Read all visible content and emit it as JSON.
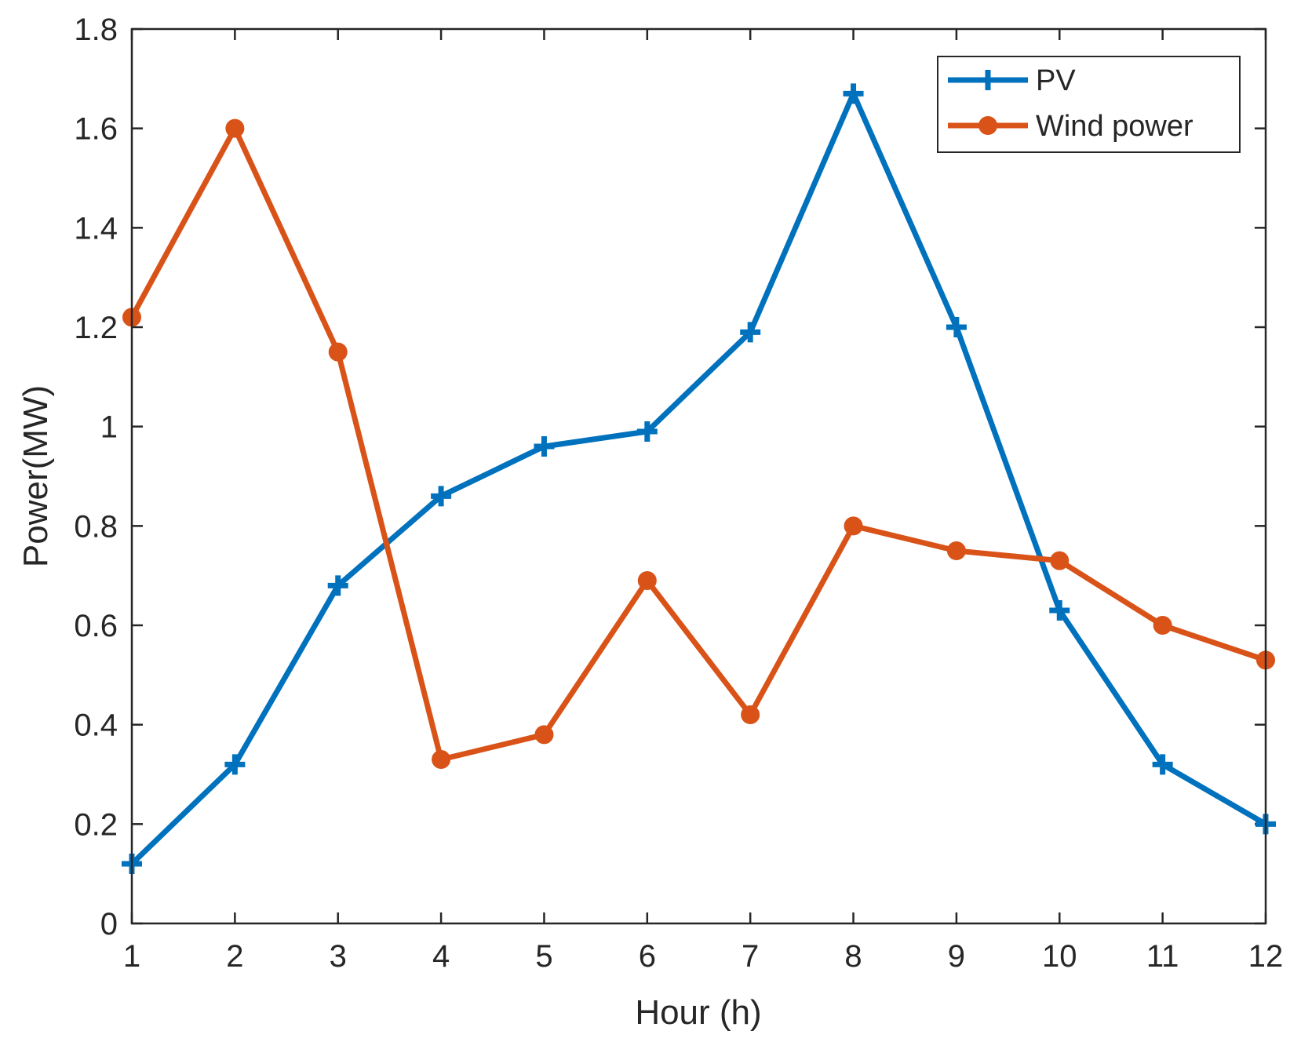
{
  "chart_data": {
    "type": "line",
    "title": "",
    "xlabel": "Hour (h)",
    "ylabel": "Power(MW)",
    "x": [
      1,
      2,
      3,
      4,
      5,
      6,
      7,
      8,
      9,
      10,
      11,
      12
    ],
    "xlim": [
      1,
      12
    ],
    "ylim": [
      0,
      1.8
    ],
    "xticks": [
      "1",
      "2",
      "3",
      "4",
      "5",
      "6",
      "7",
      "8",
      "9",
      "10",
      "11",
      "12"
    ],
    "yticks": [
      "0",
      "0.2",
      "0.4",
      "0.6",
      "0.8",
      "1",
      "1.2",
      "1.4",
      "1.6",
      "1.8"
    ],
    "grid": false,
    "legend_position": "top-right",
    "series": [
      {
        "name": "PV",
        "marker": "plus",
        "color": "#0072BD",
        "values": [
          0.12,
          0.32,
          0.68,
          0.86,
          0.96,
          0.99,
          1.19,
          1.67,
          1.2,
          0.63,
          0.32,
          0.2
        ]
      },
      {
        "name": "Wind power",
        "marker": "circle",
        "color": "#D95319",
        "values": [
          1.22,
          1.6,
          1.15,
          0.33,
          0.38,
          0.69,
          0.42,
          0.8,
          0.75,
          0.73,
          0.6,
          0.53
        ]
      }
    ]
  }
}
